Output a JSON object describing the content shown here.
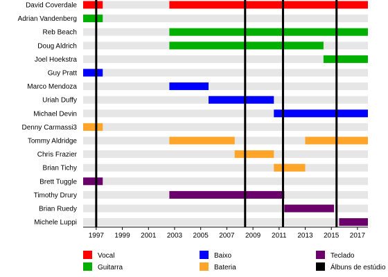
{
  "chart_data": {
    "type": "timeline",
    "x_axis": {
      "min": 1996,
      "max": 2017.8,
      "tick_labels": [
        "1997",
        "1999",
        "2001",
        "2003",
        "2005",
        "2007",
        "2009",
        "2011",
        "2013",
        "2015",
        "2017"
      ]
    },
    "members": [
      {
        "name": "David Coverdale",
        "periods": [
          {
            "role": "vocal",
            "start": 1996.0,
            "end": 1997.5
          },
          {
            "role": "vocal",
            "start": 2002.6,
            "end": 2017.8
          }
        ]
      },
      {
        "name": "Adrian Vandenberg",
        "periods": [
          {
            "role": "guitar",
            "start": 1996.0,
            "end": 1997.5
          }
        ]
      },
      {
        "name": "Reb Beach",
        "periods": [
          {
            "role": "guitar",
            "start": 2002.6,
            "end": 2017.8
          }
        ]
      },
      {
        "name": "Doug Aldrich",
        "periods": [
          {
            "role": "guitar",
            "start": 2002.6,
            "end": 2014.4
          }
        ]
      },
      {
        "name": "Joel Hoekstra",
        "periods": [
          {
            "role": "guitar",
            "start": 2014.4,
            "end": 2017.8
          }
        ]
      },
      {
        "name": "Guy Pratt",
        "periods": [
          {
            "role": "bass",
            "start": 1996.0,
            "end": 1997.5
          }
        ]
      },
      {
        "name": "Marco Mendoza",
        "periods": [
          {
            "role": "bass",
            "start": 2002.6,
            "end": 2005.6
          }
        ]
      },
      {
        "name": "Uriah Duffy",
        "periods": [
          {
            "role": "bass",
            "start": 2005.6,
            "end": 2010.6
          }
        ]
      },
      {
        "name": "Michael Devin",
        "periods": [
          {
            "role": "bass",
            "start": 2010.6,
            "end": 2017.8
          }
        ]
      },
      {
        "name": "Denny Carmassi3",
        "periods": [
          {
            "role": "drums",
            "start": 1996.0,
            "end": 1997.5
          }
        ]
      },
      {
        "name": "Tommy Aldridge",
        "periods": [
          {
            "role": "drums",
            "start": 2002.6,
            "end": 2007.6
          },
          {
            "role": "drums",
            "start": 2013.0,
            "end": 2017.8
          }
        ]
      },
      {
        "name": "Chris Frazier",
        "periods": [
          {
            "role": "drums",
            "start": 2007.6,
            "end": 2010.6
          }
        ]
      },
      {
        "name": "Brian Tichy",
        "periods": [
          {
            "role": "drums",
            "start": 2010.6,
            "end": 2013.0
          }
        ]
      },
      {
        "name": "Brett Tuggle",
        "periods": [
          {
            "role": "keys",
            "start": 1996.0,
            "end": 1997.5
          }
        ]
      },
      {
        "name": "Timothy Drury",
        "periods": [
          {
            "role": "keys",
            "start": 2002.6,
            "end": 2011.4
          }
        ]
      },
      {
        "name": "Brian Ruedy",
        "periods": [
          {
            "role": "keys",
            "start": 2011.4,
            "end": 2015.2
          }
        ]
      },
      {
        "name": "Michele Luppi",
        "periods": [
          {
            "role": "keys",
            "start": 2015.6,
            "end": 2017.8
          }
        ]
      }
    ],
    "album_years": [
      1997.0,
      2008.4,
      2011.3,
      2015.4
    ],
    "roles": {
      "vocal": {
        "label": "Vocal",
        "color": "#ff0000"
      },
      "guitar": {
        "label": "Guitarra",
        "color": "#00b000"
      },
      "bass": {
        "label": "Baixo",
        "color": "#0000ff"
      },
      "drums": {
        "label": "Bateria",
        "color": "#ffa52a"
      },
      "keys": {
        "label": "Teclado",
        "color": "#6a006a"
      }
    },
    "legend": [
      {
        "key": "vocal",
        "label": "Vocal",
        "color": "#ff0000"
      },
      {
        "key": "guitar",
        "label": "Guitarra",
        "color": "#00b000"
      },
      {
        "key": "bass",
        "label": "Baixo",
        "color": "#0000ff"
      },
      {
        "key": "drums",
        "label": "Bateria",
        "color": "#ffa52a"
      },
      {
        "key": "keys",
        "label": "Teclado",
        "color": "#6a006a"
      },
      {
        "key": "albums",
        "label": "Álbuns de estúdio",
        "color": "#000000"
      }
    ],
    "row_background": "#e6e6e6",
    "legend_placement": "bottom"
  }
}
